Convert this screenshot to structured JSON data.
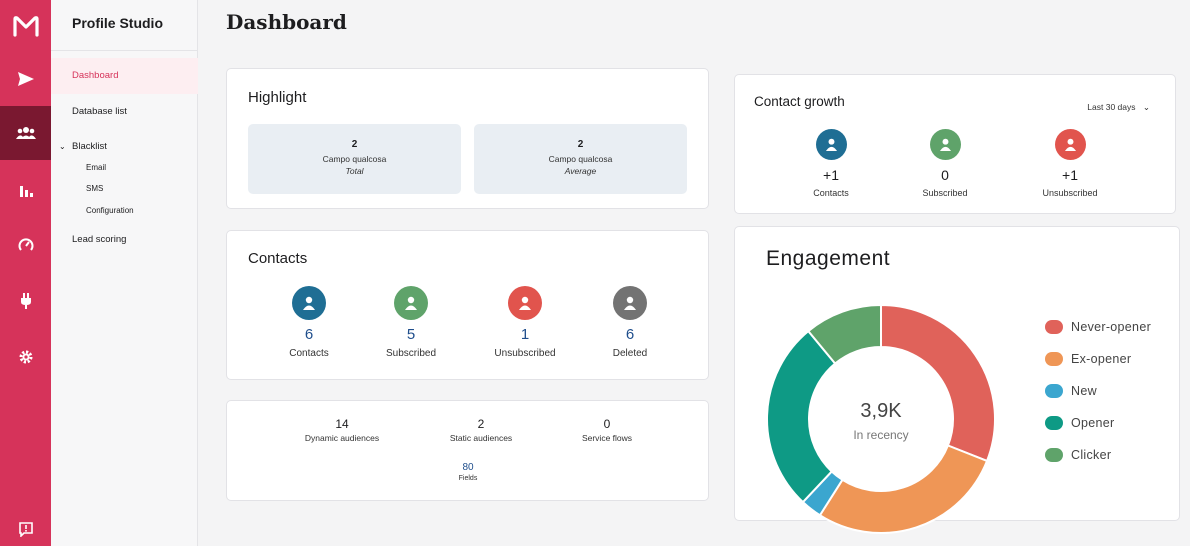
{
  "app": {
    "title": "Profile Studio"
  },
  "rail": {
    "items": [
      "logo-icon",
      "send-icon",
      "users-icon",
      "bar-chart-icon",
      "gauge-icon",
      "plug-icon",
      "gear-icon",
      "feedback-icon"
    ],
    "active": "users-icon",
    "accent": "#d6335a",
    "active_bg": "#7a1830"
  },
  "sidebar": {
    "dashboard": "Dashboard",
    "database_list": "Database list",
    "blacklist": "Blacklist",
    "blacklist_items": [
      "Email",
      "SMS",
      "Configuration"
    ],
    "lead_scoring": "Lead scoring"
  },
  "page": {
    "title": "Dashboard"
  },
  "highlight": {
    "title": "Highlight",
    "boxes": [
      {
        "value": "2",
        "label": "Campo qualcosa",
        "sub": "Total"
      },
      {
        "value": "2",
        "label": "Campo qualcosa",
        "sub": "Average"
      }
    ]
  },
  "contacts": {
    "title": "Contacts",
    "stats": [
      {
        "value": "6",
        "label": "Contacts",
        "color": "#1f6e94"
      },
      {
        "value": "5",
        "label": "Subscribed",
        "color": "#5fa36a"
      },
      {
        "value": "1",
        "label": "Unsubscribed",
        "color": "#e1544d"
      },
      {
        "value": "6",
        "label": "Deleted",
        "color": "#737373"
      }
    ]
  },
  "audiences": {
    "items": [
      {
        "value": "14",
        "label": "Dynamic audiences"
      },
      {
        "value": "2",
        "label": "Static audiences"
      },
      {
        "value": "0",
        "label": "Service flows"
      }
    ],
    "fields": {
      "value": "80",
      "label": "Fields"
    }
  },
  "growth": {
    "title": "Contact growth",
    "range": "Last 30 days",
    "stats": [
      {
        "value": "+1",
        "label": "Contacts",
        "color": "#1f6e94"
      },
      {
        "value": "0",
        "label": "Subscribed",
        "color": "#5fa36a"
      },
      {
        "value": "+1",
        "label": "Unsubscribed",
        "color": "#e1544d"
      }
    ]
  },
  "engagement": {
    "title": "Engagement",
    "center_value": "3,9K",
    "center_label": "In recency",
    "legend": [
      {
        "name": "Never-opener",
        "color": "#e0625a"
      },
      {
        "name": "Ex-opener",
        "color": "#ef9656"
      },
      {
        "name": "New",
        "color": "#3ba6cf"
      },
      {
        "name": "Opener",
        "color": "#0e9a85"
      },
      {
        "name": "Clicker",
        "color": "#5fa36a"
      }
    ]
  },
  "chart_data": {
    "type": "pie",
    "categories": [
      "Never-opener",
      "Ex-opener",
      "New",
      "Opener",
      "Clicker"
    ],
    "values": [
      31,
      28,
      3,
      27,
      11
    ],
    "colors": [
      "#e0625a",
      "#ef9656",
      "#3ba6cf",
      "#0e9a85",
      "#5fa36a"
    ],
    "title": "Engagement"
  }
}
